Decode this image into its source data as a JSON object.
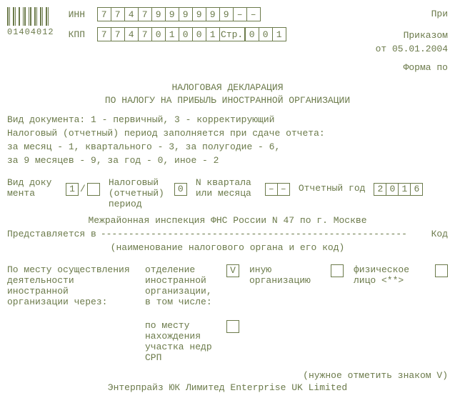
{
  "barcode_number": "01404012",
  "inn_label": "ИНН",
  "inn_cells": [
    "7",
    "7",
    "4",
    "7",
    "9",
    "9",
    "9",
    "9",
    "9",
    "9",
    "–",
    "–"
  ],
  "kpp_label": "КПП",
  "kpp_cells": [
    "7",
    "7",
    "4",
    "7",
    "0",
    "1",
    "0",
    "0",
    "1"
  ],
  "page_label": "Стр.",
  "page_cells": [
    "0",
    "0",
    "1"
  ],
  "right_top": "При",
  "right_prikazom": "Приказом",
  "right_date": "от 05.01.2004",
  "right_forma": "Форма по",
  "title_line1": "НАЛОГОВАЯ ДЕКЛАРАЦИЯ",
  "title_line2": "ПО НАЛОГУ НА ПРИБЫЛЬ ИНОСТРАННОЙ ОРГАНИЗАЦИИ",
  "hint1": "Вид документа: 1 - первичный, 3 - корректирующий",
  "hint2": "Налоговый (отчетный) период заполняется при сдаче отчета:",
  "hint3": "за месяц - 1, квартального - 3, за полугодие - 6,",
  "hint4": "за 9 месяцев - 9, за год - 0, иное - 2",
  "vid_doc_l1": "Вид доку",
  "vid_doc_l2": "мента",
  "vid_doc_val": "1",
  "vid_doc_corr": "",
  "slash": "/",
  "period_l1": "Налоговый",
  "period_l2": "(отчетный)",
  "period_l3": "период",
  "period_val": "0",
  "kvartal_l1": "N квартала",
  "kvartal_l2": "или месяца",
  "kvartal_v1": "–",
  "kvartal_v2": "–",
  "year_label": "Отчетный год",
  "year_cells": [
    "2",
    "0",
    "1",
    "6"
  ],
  "ifns_line": "Межрайонная инспекция ФНС России N 47 по г. Москве",
  "predst": "Представляется в",
  "predst_dashes": "-------------------------------------------------------",
  "predst_kod": "Код",
  "predst_sub": "(наименование налогового органа и его код)",
  "place_l1": "По месту осуществления",
  "place_l2": "деятельности иностранной",
  "place_l3": "организации через:",
  "c1_l1": "отделение",
  "c1_l2": "иностранной",
  "c1_l3": "организации,",
  "c1_l4": "в том числе:",
  "c1_val": "V",
  "c2_l1": "иную",
  "c2_l2": "организацию",
  "c2_val": "",
  "c3_l1": "физическое",
  "c3_l2": "лицо <**>",
  "c3_val": "",
  "b1_l1": "по месту",
  "b1_l2": "нахождения",
  "b1_l3": "участка недр",
  "b1_l4": "СРП",
  "b1_val": "",
  "note": "(нужное отметить знаком V)",
  "footer": "Энтерпрайз ЮК Лимитед Enterprise UK Limited"
}
